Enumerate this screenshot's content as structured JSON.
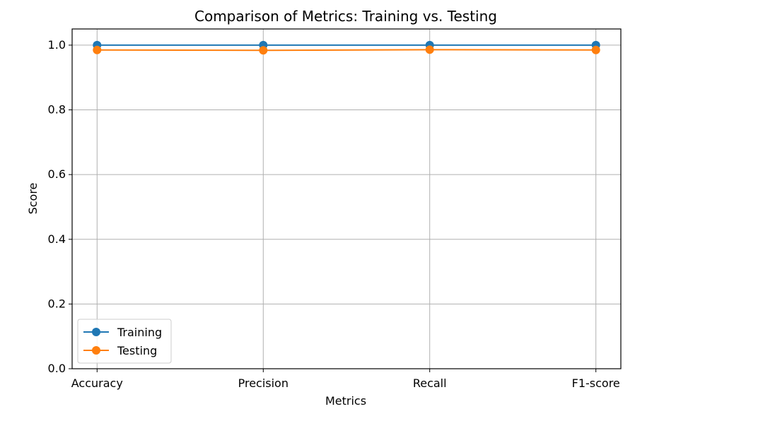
{
  "chart_data": {
    "type": "line",
    "title": "Comparison of Metrics: Training vs. Testing",
    "xlabel": "Metrics",
    "ylabel": "Score",
    "categories": [
      "Accuracy",
      "Precision",
      "Recall",
      "F1-score"
    ],
    "ylim": [
      0.0,
      1.05
    ],
    "yticks": [
      "0.0",
      "0.2",
      "0.4",
      "0.6",
      "0.8",
      "1.0"
    ],
    "grid": true,
    "legend_position": "lower-left",
    "series": [
      {
        "name": "Training",
        "color": "#1f77b4",
        "marker": "circle",
        "values": [
          1.0,
          1.0,
          1.0,
          1.0
        ]
      },
      {
        "name": "Testing",
        "color": "#ff7f0e",
        "marker": "circle",
        "values": [
          0.985,
          0.984,
          0.986,
          0.985
        ]
      }
    ]
  }
}
